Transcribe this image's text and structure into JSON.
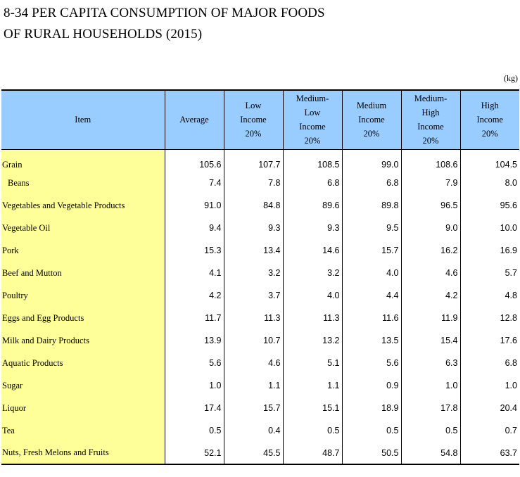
{
  "title_line1": "8-34  PER CAPITA CONSUMPTION OF MAJOR FOODS",
  "title_line2": "OF RURAL HOUSEHOLDS (2015)",
  "unit": "(kg)",
  "headers": [
    "Item",
    "Average",
    "Low\nIncome\n20%",
    "Medium-\nLow\nIncome\n20%",
    "Medium\nIncome\n20%",
    "Medium-\nHigh\nIncome\n20%",
    "High\nIncome\n20%"
  ],
  "rows": [
    {
      "item": "Grain",
      "values": [
        "105.6",
        "107.7",
        "108.5",
        "99.0",
        "108.6",
        "104.5"
      ]
    },
    {
      "item": "Beans",
      "values": [
        "7.4",
        "7.8",
        "6.8",
        "6.8",
        "7.9",
        "8.0"
      ]
    },
    {
      "item": "Vegetables and Vegetable Products",
      "values": [
        "91.0",
        "84.8",
        "89.6",
        "89.8",
        "96.5",
        "95.6"
      ]
    },
    {
      "item": "Vegetable Oil",
      "values": [
        "9.4",
        "9.3",
        "9.3",
        "9.5",
        "9.0",
        "10.0"
      ]
    },
    {
      "item": "Pork",
      "values": [
        "15.3",
        "13.4",
        "14.6",
        "15.7",
        "16.2",
        "16.9"
      ]
    },
    {
      "item": "Beef and Mutton",
      "values": [
        "4.1",
        "3.2",
        "3.2",
        "4.0",
        "4.6",
        "5.7"
      ]
    },
    {
      "item": "Poultry",
      "values": [
        "4.2",
        "3.7",
        "4.0",
        "4.4",
        "4.2",
        "4.8"
      ]
    },
    {
      "item": "Eggs and Egg Products",
      "values": [
        "11.7",
        "11.3",
        "11.3",
        "11.6",
        "11.9",
        "12.8"
      ]
    },
    {
      "item": "Milk and Dairy Products",
      "values": [
        "13.9",
        "10.7",
        "13.2",
        "13.5",
        "15.4",
        "17.6"
      ]
    },
    {
      "item": "Aquatic Products",
      "values": [
        "5.6",
        "4.6",
        "5.1",
        "5.6",
        "6.3",
        "6.8"
      ]
    },
    {
      "item": "Sugar",
      "values": [
        "1.0",
        "1.1",
        "1.1",
        "0.9",
        "1.0",
        "1.0"
      ]
    },
    {
      "item": "Liquor",
      "values": [
        "17.4",
        "15.7",
        "15.1",
        "18.9",
        "17.8",
        "20.4"
      ]
    },
    {
      "item": "Tea",
      "values": [
        "0.5",
        "0.4",
        "0.5",
        "0.5",
        "0.5",
        "0.7"
      ]
    },
    {
      "item": "Nuts, Fresh Melons and Fruits",
      "values": [
        "52.1",
        "45.5",
        "48.7",
        "50.5",
        "54.8",
        "63.7"
      ]
    }
  ]
}
